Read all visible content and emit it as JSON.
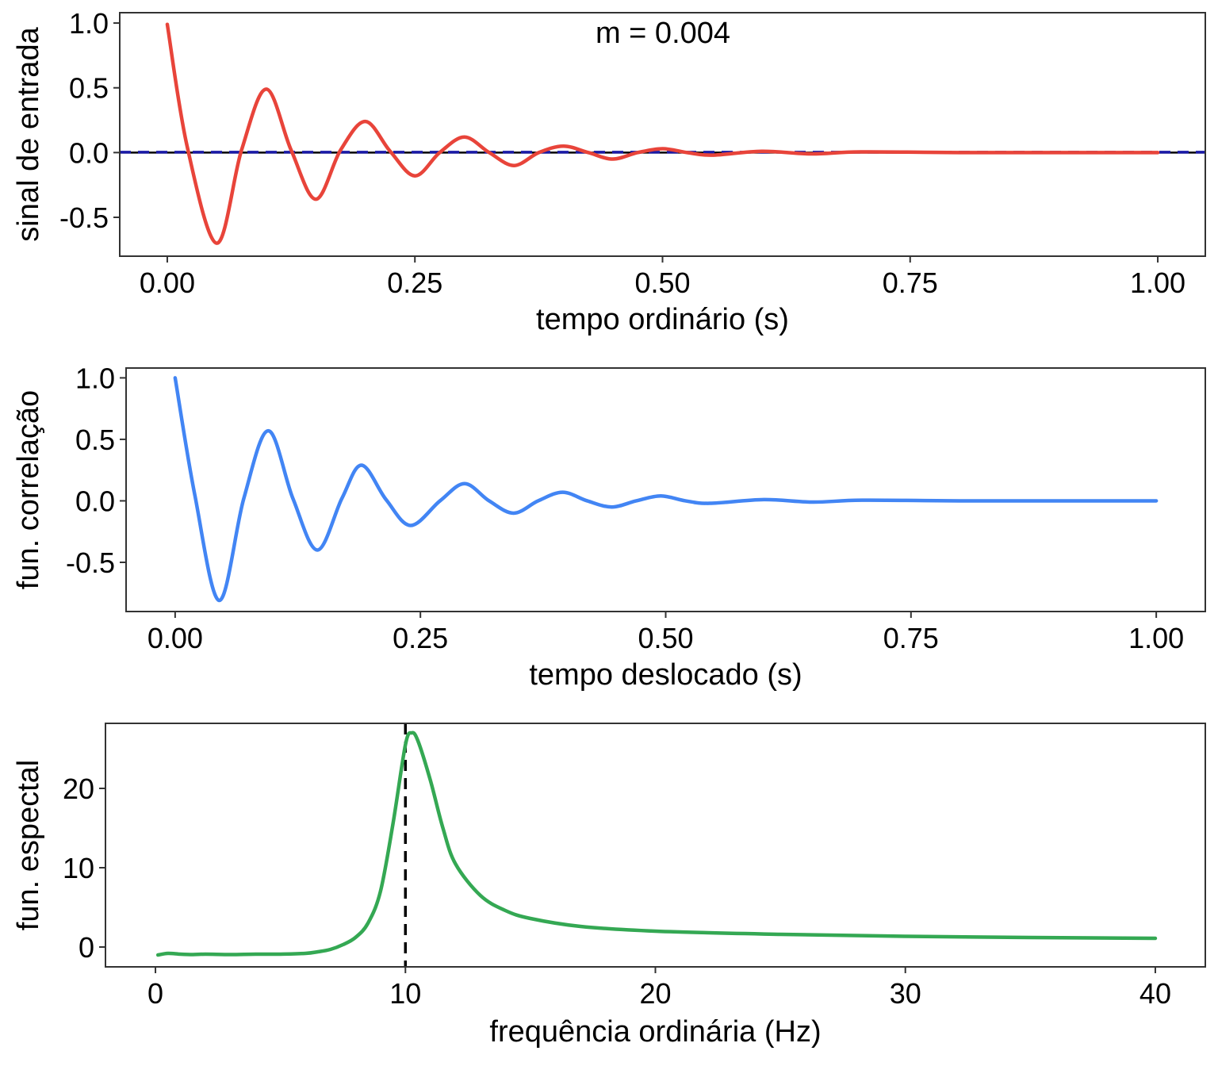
{
  "chart_data": [
    {
      "type": "line",
      "annotation": "m = 0.004",
      "xlabel": "tempo ordinário (s)",
      "ylabel": "sinal de entrada",
      "xlim": [
        -0.048,
        1.048
      ],
      "ylim": [
        -0.8,
        1.08
      ],
      "xticks": [
        0,
        0.25,
        0.5,
        0.75,
        1
      ],
      "xtick_labels": [
        "0.00",
        "0.25",
        "0.50",
        "0.75",
        "1.00"
      ],
      "yticks": [
        -0.5,
        0,
        0.5,
        1
      ],
      "ytick_labels": [
        "-0.5",
        "0.0",
        "0.5",
        "1.0"
      ],
      "grid": false,
      "reference_lines": [
        {
          "kind": "horizontal",
          "y": 0,
          "style": "solid",
          "color": "#000000"
        },
        {
          "kind": "horizontal",
          "y": 0.003,
          "style": "dashed",
          "color": "#1a1aa6"
        }
      ],
      "series": [
        {
          "color": "#e8443a",
          "x": [
            0,
            0.02,
            0.05,
            0.075,
            0.1,
            0.125,
            0.15,
            0.175,
            0.2,
            0.225,
            0.25,
            0.275,
            0.3,
            0.325,
            0.35,
            0.375,
            0.4,
            0.425,
            0.45,
            0.475,
            0.5,
            0.525,
            0.55,
            0.6,
            0.65,
            0.7,
            0.8,
            0.9,
            1.0
          ],
          "y": [
            0.99,
            0.05,
            -0.7,
            0.02,
            0.49,
            0.02,
            -0.36,
            0.02,
            0.24,
            0.01,
            -0.18,
            0.0,
            0.12,
            0.0,
            -0.1,
            0.0,
            0.05,
            0.0,
            -0.05,
            0.0,
            0.03,
            0.0,
            -0.02,
            0.01,
            -0.01,
            0.005,
            0.0,
            0.0,
            0.0
          ]
        }
      ]
    },
    {
      "type": "line",
      "xlabel": "tempo deslocado (s)",
      "ylabel": "fun. correlação",
      "xlim": [
        -0.05,
        1.05
      ],
      "ylim": [
        -0.9,
        1.08
      ],
      "xticks": [
        0,
        0.25,
        0.5,
        0.75,
        1
      ],
      "xtick_labels": [
        "0.00",
        "0.25",
        "0.50",
        "0.75",
        "1.00"
      ],
      "yticks": [
        -0.5,
        0,
        0.5,
        1
      ],
      "ytick_labels": [
        "-0.5",
        "0.0",
        "0.5",
        "1.0"
      ],
      "grid": false,
      "series": [
        {
          "color": "#4285f4",
          "x": [
            0,
            0.02,
            0.045,
            0.07,
            0.095,
            0.12,
            0.145,
            0.17,
            0.19,
            0.215,
            0.24,
            0.27,
            0.295,
            0.32,
            0.345,
            0.37,
            0.395,
            0.42,
            0.445,
            0.47,
            0.495,
            0.52,
            0.545,
            0.6,
            0.65,
            0.7,
            0.8,
            0.9,
            1.0
          ],
          "y": [
            1.0,
            0.05,
            -0.81,
            0.02,
            0.57,
            0.02,
            -0.4,
            0.02,
            0.29,
            0.01,
            -0.2,
            0.0,
            0.14,
            0.0,
            -0.1,
            0.0,
            0.07,
            0.0,
            -0.05,
            0.0,
            0.04,
            0.0,
            -0.02,
            0.01,
            -0.01,
            0.005,
            0.0,
            0.0,
            0.0
          ]
        }
      ]
    },
    {
      "type": "line",
      "xlabel": "frequência ordinária (Hz)",
      "ylabel": "fun. espectal",
      "xlim": [
        -2.0,
        42.0
      ],
      "ylim": [
        -2.5,
        28.2
      ],
      "xticks": [
        0,
        10,
        20,
        30,
        40
      ],
      "xtick_labels": [
        "0",
        "10",
        "20",
        "30",
        "40"
      ],
      "yticks": [
        0,
        10,
        20
      ],
      "ytick_labels": [
        "0",
        "10",
        "20"
      ],
      "grid": false,
      "reference_lines": [
        {
          "kind": "vertical",
          "x": 10,
          "style": "dashed",
          "color": "#000000"
        }
      ],
      "series": [
        {
          "color": "#34a853",
          "x": [
            0.1,
            0.5,
            1.0,
            1.5,
            2,
            3,
            4,
            5,
            6,
            6.5,
            7,
            7.5,
            8,
            8.5,
            9,
            9.5,
            10,
            10.25,
            10.5,
            11,
            11.5,
            12,
            13,
            14,
            15,
            17,
            20,
            25,
            30,
            35,
            40
          ],
          "y": [
            -1.0,
            -0.8,
            -0.9,
            -0.95,
            -0.9,
            -0.95,
            -0.9,
            -0.9,
            -0.8,
            -0.6,
            -0.3,
            0.3,
            1.2,
            3.0,
            7.0,
            15.5,
            25.5,
            27.0,
            26.0,
            21.0,
            15.0,
            10.5,
            6.5,
            4.6,
            3.6,
            2.6,
            2.0,
            1.6,
            1.35,
            1.2,
            1.1
          ]
        }
      ]
    }
  ]
}
